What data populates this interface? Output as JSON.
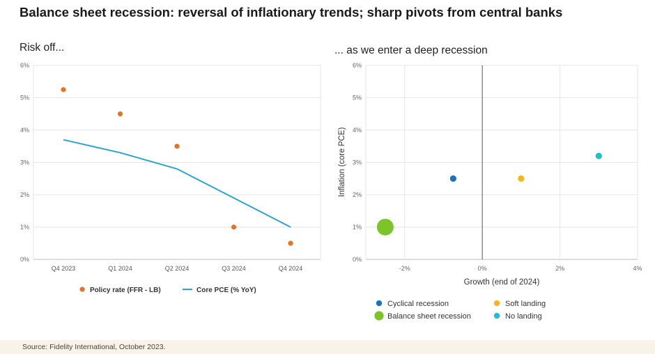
{
  "page": {
    "title": "Balance sheet recession: reversal of inflationary trends; sharp pivots from central banks",
    "source": "Source: Fidelity International, October 2023."
  },
  "chart_data": [
    {
      "type": "line",
      "title": "Risk off...",
      "categories": [
        "Q4 2023",
        "Q1 2024",
        "Q2 2024",
        "Q3 2024",
        "Q4 2024"
      ],
      "ylim": [
        0,
        6
      ],
      "yticks": [
        "0%",
        "1%",
        "2%",
        "3%",
        "4%",
        "5%",
        "6%"
      ],
      "grid": true,
      "legend": "bottom",
      "series": [
        {
          "name": "Policy rate (FFR - LB)",
          "style": "points",
          "color": "#e8731f",
          "values": [
            5.25,
            4.5,
            3.5,
            1.0,
            0.5
          ]
        },
        {
          "name": "Core PCE (% YoY)",
          "style": "line",
          "color": "#2aa3d8",
          "values": [
            3.7,
            3.3,
            2.8,
            1.9,
            1.0
          ]
        }
      ]
    },
    {
      "type": "scatter",
      "title": "... as we enter a deep recession",
      "xlabel": "Growth (end of 2024)",
      "ylabel": "Inflation (core PCE)",
      "xlim": [
        -3,
        4
      ],
      "ylim": [
        0,
        6
      ],
      "xticks": [
        "-2%",
        "0%",
        "2%",
        "4%"
      ],
      "xtick_values": [
        -2,
        0,
        2,
        4
      ],
      "yticks": [
        "0%",
        "1%",
        "2%",
        "3%",
        "4%",
        "5%",
        "6%"
      ],
      "grid": true,
      "legend": "bottom",
      "series": [
        {
          "name": "Cyclical recession",
          "color": "#1b73c0",
          "x": -0.75,
          "y": 2.5,
          "size": "small"
        },
        {
          "name": "Soft landing",
          "color": "#f5b71a",
          "x": 1.0,
          "y": 2.5,
          "size": "small"
        },
        {
          "name": "Balance sheet recession",
          "color": "#7cc428",
          "x": -2.5,
          "y": 1.0,
          "size": "large"
        },
        {
          "name": "No landing",
          "color": "#20c0c8",
          "x": 3.0,
          "y": 3.2,
          "size": "small"
        }
      ]
    }
  ]
}
